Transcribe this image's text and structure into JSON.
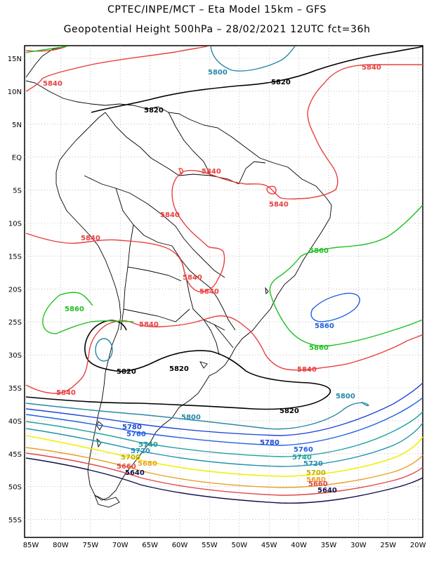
{
  "title": {
    "line1": "CPTEC/INPE/MCT –  Eta Model 15km – GFS",
    "line2": "Geopotential Height 500hPa – 28/02/2021 12UTC fct=36h"
  },
  "axes": {
    "lat_labels": [
      "15N",
      "10N",
      "5N",
      "EQ",
      "5S",
      "10S",
      "15S",
      "20S",
      "25S",
      "30S",
      "35S",
      "40S",
      "45S",
      "50S",
      "55S"
    ],
    "lon_labels": [
      "85W",
      "80W",
      "75W",
      "70W",
      "65W",
      "60W",
      "55W",
      "50W",
      "45W",
      "40W",
      "35W",
      "30W",
      "25W",
      "20W"
    ]
  },
  "colors": {
    "c5640": "#10104a",
    "c5660": "#e0464a",
    "c5680": "#e8a028",
    "c5700": "#f0f000",
    "c5720": "#2090b0",
    "c5740": "#20a0a0",
    "c5760": "#2060e0",
    "c5780": "#2048d8",
    "c5800": "#2a88a8",
    "c5820": "#000000",
    "c5840": "#e84040",
    "c5860": "#20c020"
  },
  "contours": {
    "l5640": "5640",
    "l5660": "5660",
    "l5680": "5680",
    "l5700": "5700",
    "l5720": "5720",
    "l5740": "5740",
    "l5760": "5760",
    "l5780": "5780",
    "l5800": "5800",
    "l5820": "5820",
    "l5840": "5840",
    "l5860": "5860"
  }
}
